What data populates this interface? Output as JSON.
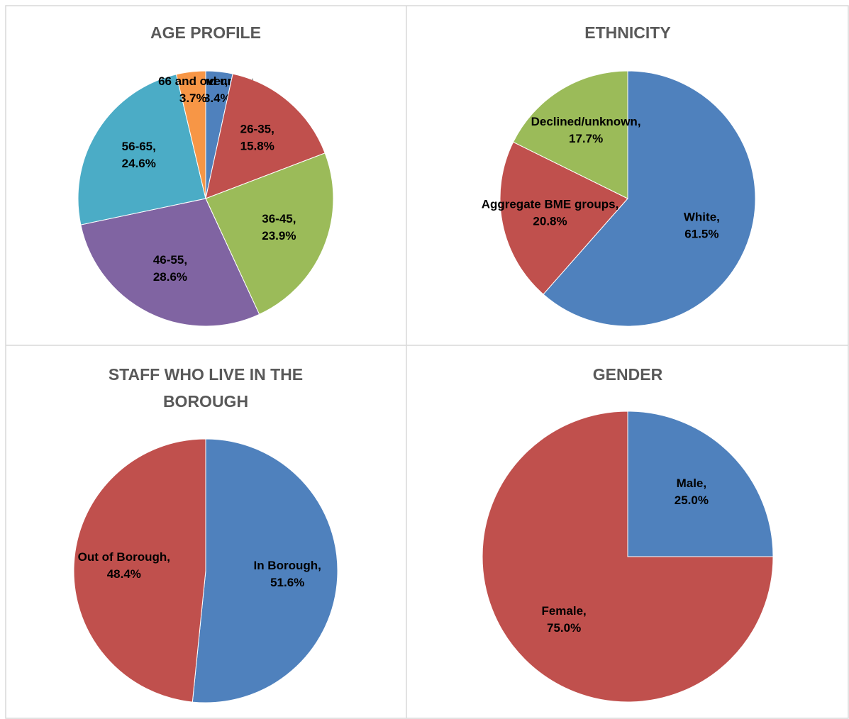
{
  "chart_data": [
    {
      "type": "pie",
      "title": "AGE PROFILE",
      "categories": [
        "25 and under",
        "26-35",
        "36-45",
        "46-55",
        "56-65",
        "66 and over"
      ],
      "values": [
        3.4,
        15.8,
        23.9,
        28.6,
        24.6,
        3.7
      ],
      "value_labels": [
        "3.4%",
        "15.8%",
        "23.9%",
        "28.6%",
        "24.6%",
        "3.7%"
      ],
      "colors": [
        "#4f81bd",
        "#c0504d",
        "#9bbb59",
        "#8064a2",
        "#4bacc6",
        "#f79646"
      ]
    },
    {
      "type": "pie",
      "title": "ETHNICITY",
      "categories": [
        "White",
        "Aggregate BME groups",
        "Declined/unknown"
      ],
      "values": [
        61.5,
        20.8,
        17.7
      ],
      "value_labels": [
        "61.5%",
        "20.8%",
        "17.7%"
      ],
      "colors": [
        "#4f81bd",
        "#c0504d",
        "#9bbb59"
      ]
    },
    {
      "type": "pie",
      "title": "STAFF WHO LIVE IN THE BOROUGH",
      "categories": [
        "In Borough",
        "Out of Borough"
      ],
      "values": [
        51.6,
        48.4
      ],
      "value_labels": [
        "51.6%",
        "48.4%"
      ],
      "colors": [
        "#4f81bd",
        "#c0504d"
      ]
    },
    {
      "type": "pie",
      "title": "GENDER",
      "categories": [
        "Male",
        "Female"
      ],
      "values": [
        25.0,
        75.0
      ],
      "value_labels": [
        "25.0%",
        "75.0%"
      ],
      "colors": [
        "#4f81bd",
        "#c0504d"
      ]
    }
  ]
}
